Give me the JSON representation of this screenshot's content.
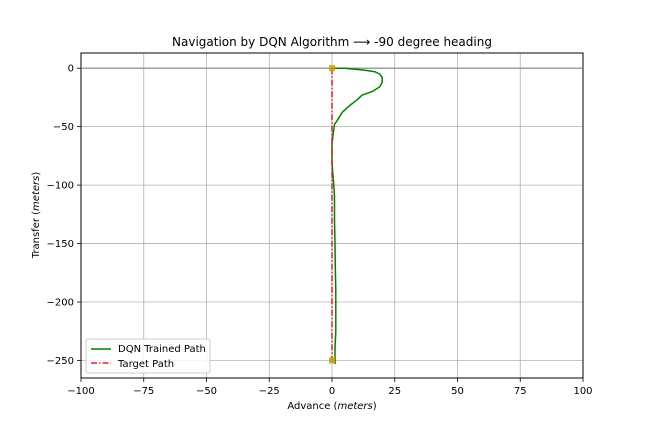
{
  "chart_data": {
    "type": "line",
    "title": "Navigation by DQN Algorithm ⟶ -90 degree heading",
    "xlabel": "Advance",
    "xlabel_unit": "meters",
    "ylabel": "Transfer",
    "ylabel_unit": "meters",
    "xlim": [
      -100,
      100
    ],
    "ylim": [
      -265,
      13
    ],
    "xticks": [
      -100,
      -75,
      -50,
      -25,
      0,
      25,
      50,
      75,
      100
    ],
    "yticks": [
      0,
      -50,
      -100,
      -150,
      -200,
      -250
    ],
    "grid": true,
    "legend_position": "lower-left",
    "series": [
      {
        "name": "DQN Trained Path",
        "color": "#008000",
        "style": "solid",
        "x": [
          0,
          5,
          10,
          14,
          17,
          19,
          20,
          20,
          19,
          16,
          12,
          10,
          7,
          4,
          2,
          1,
          0.5,
          0,
          0,
          0.3,
          0.5,
          0.7,
          1,
          1,
          1,
          1.2,
          1.3,
          1.5,
          1.5,
          1.5,
          1.2,
          1.2,
          1.2,
          1.2
        ],
        "y": [
          0,
          0,
          -1,
          -2,
          -3,
          -5,
          -8,
          -12,
          -16,
          -20,
          -23,
          -27,
          -32,
          -38,
          -45,
          -48,
          -55,
          -65,
          -80,
          -90,
          -95,
          -100,
          -110,
          -120,
          -130,
          -150,
          -170,
          -190,
          -210,
          -225,
          -240,
          -248,
          -252,
          -253
        ]
      },
      {
        "name": "Target Path",
        "color": "#d62728",
        "style": "dashdot",
        "x": [
          0,
          0
        ],
        "y": [
          0,
          -250
        ]
      }
    ],
    "markers": [
      {
        "x": 0,
        "y": 0,
        "color": "#c8a000"
      },
      {
        "x": 0,
        "y": -250,
        "color": "#c8a000"
      }
    ],
    "reference_line": {
      "y": 0,
      "color": "#888888"
    }
  }
}
